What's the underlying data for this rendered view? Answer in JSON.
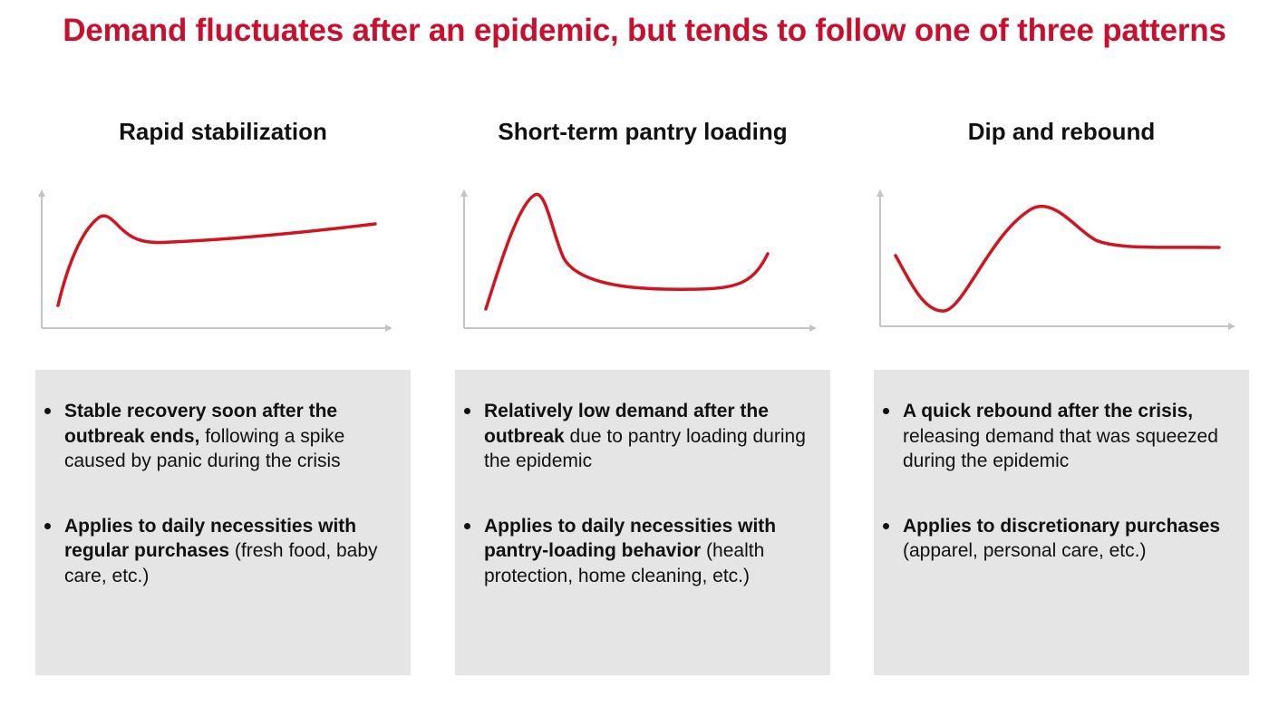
{
  "page": {
    "title": "Demand fluctuates after an epidemic, but tends to follow one of three patterns"
  },
  "colors": {
    "title": "#c8102e",
    "curve": "#d2141f",
    "axis": "#c4c4c4",
    "box": "#e5e5e5"
  },
  "panels": [
    {
      "title": "Rapid stabilization",
      "bullets": [
        {
          "bold": "Stable recovery soon after the outbreak ends,",
          "text": " following a spike caused by panic during the crisis"
        },
        {
          "bold": "Applies to daily necessities with regular purchases",
          "text": " (fresh food, baby care, etc.)"
        }
      ]
    },
    {
      "title": "Short-term pantry loading",
      "bullets": [
        {
          "bold": "Relatively low demand after the outbreak",
          "text": " due to pantry loading during the epidemic"
        },
        {
          "bold": "Applies to daily necessities with pantry-loading behavior",
          "text": " (health protection, home cleaning, etc.)"
        }
      ]
    },
    {
      "title": "Dip and rebound",
      "bullets": [
        {
          "bold": "A quick rebound after the crisis,",
          "text": " releasing demand that was squeezed during the epidemic"
        },
        {
          "bold": "Applies to discretionary purchases",
          "text": " (apparel, personal care, etc.)"
        }
      ]
    }
  ]
}
